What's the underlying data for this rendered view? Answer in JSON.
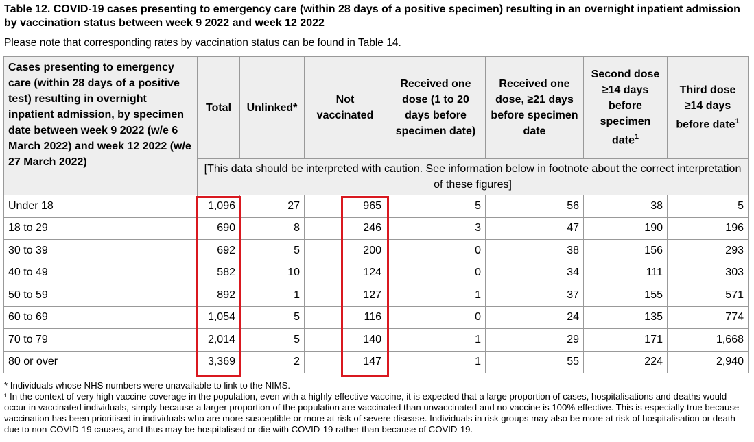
{
  "title": "Table 12. COVID-19 cases presenting to emergency care (within 28 days of a positive specimen) resulting in an overnight inpatient admission by vaccination status between week 9 2022 and week 12 2022",
  "note": "Please note that corresponding rates by vaccination status can be found in Table 14.",
  "table": {
    "headers": [
      "Cases presenting to emergency care (within 28 days of a positive test) resulting in overnight inpatient admission, by specimen date between week 9 2022 (w/e 6 March 2022) and week 12 2022 (w/e 27 March 2022)",
      "Total",
      "Unlinked*",
      "Not vaccinated",
      "Received one dose (1 to 20 days before specimen date)",
      "Received one dose, ≥21 days before specimen date",
      {
        "text": "Second dose ≥14 days before specimen date",
        "note": "1"
      },
      {
        "text": "Third dose ≥14 days before date",
        "note": "1"
      }
    ],
    "caution": "[This data should be interpreted with caution. See information below in footnote about the correct interpretation of these figures]",
    "rows": [
      [
        "Under 18",
        "1,096",
        "27",
        "965",
        "5",
        "56",
        "38",
        "5"
      ],
      [
        "18 to 29",
        "690",
        "8",
        "246",
        "3",
        "47",
        "190",
        "196"
      ],
      [
        "30 to 39",
        "692",
        "5",
        "200",
        "0",
        "38",
        "156",
        "293"
      ],
      [
        "40 to 49",
        "582",
        "10",
        "124",
        "0",
        "34",
        "111",
        "303"
      ],
      [
        "50 to 59",
        "892",
        "1",
        "127",
        "1",
        "37",
        "155",
        "571"
      ],
      [
        "60 to 69",
        "1,054",
        "5",
        "116",
        "0",
        "24",
        "135",
        "774"
      ],
      [
        "70 to 79",
        "2,014",
        "5",
        "140",
        "1",
        "29",
        "171",
        "1,668"
      ],
      [
        "80 or over",
        "3,369",
        "2",
        "147",
        "1",
        "55",
        "224",
        "2,940"
      ]
    ]
  },
  "footnotes": [
    "* Individuals whose NHS numbers were unavailable to link to the NIMS.",
    "¹ In the context of very high vaccine coverage in the population, even with a highly effective vaccine, it is expected that a large proportion of cases, hospitalisations and deaths would occur in vaccinated individuals, simply because a larger proportion of the population are vaccinated than unvaccinated and no vaccine is 100% effective. This is especially true because vaccination has been prioritised in individuals who are more susceptible or more at risk of severe disease. Individuals in risk groups may also be more at risk of hospitalisation or death due to non-COVID-19 causes, and thus may be hospitalised or die with COVID-19 rather than because of COVID-19."
  ]
}
